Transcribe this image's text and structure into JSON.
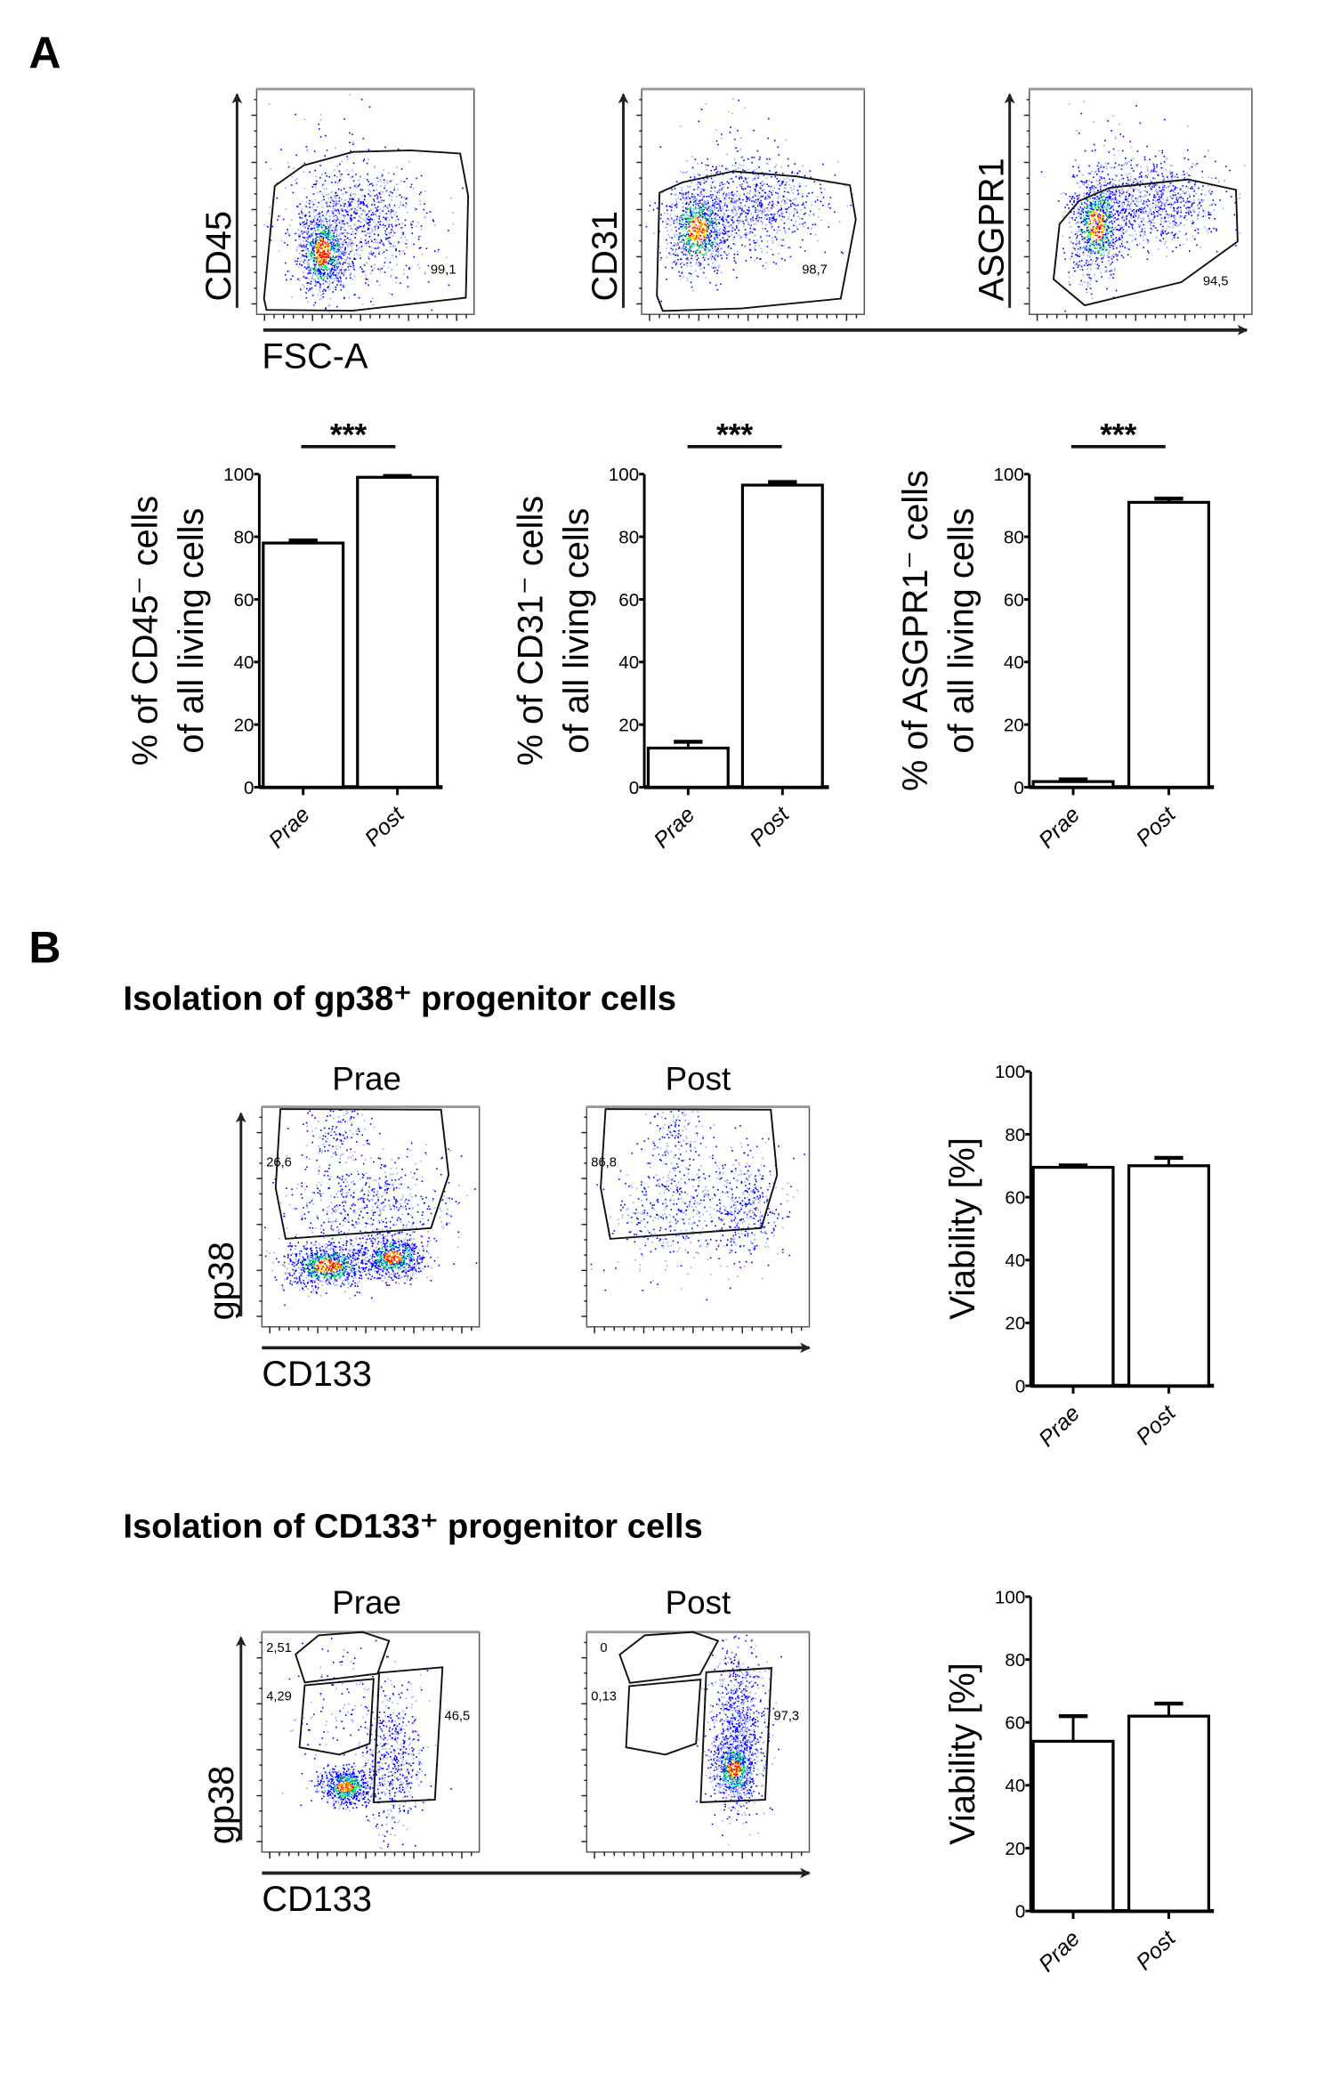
{
  "panel_labels": {
    "a": "A",
    "b": "B"
  },
  "panel_a": {
    "x_axis": "FSC-A",
    "flow_plots": [
      {
        "y_axis": "CD45",
        "gate_value": "99,1"
      },
      {
        "y_axis": "CD31",
        "gate_value": "98,7"
      },
      {
        "y_axis": "ASGPR1",
        "gate_value": "94,5"
      }
    ]
  },
  "panel_b": {
    "sections": [
      {
        "title": "Isolation of gp38⁺ progenitor cells",
        "groups": [
          "Prae",
          "Post"
        ],
        "y_axis": "gp38",
        "x_axis": "CD133",
        "gate_values": [
          [
            "26,6"
          ],
          [
            "86,8"
          ]
        ]
      },
      {
        "title": "Isolation of CD133⁺ progenitor cells",
        "groups": [
          "Prae",
          "Post"
        ],
        "y_axis": "gp38",
        "x_axis": "CD133",
        "gate_values": [
          [
            "2,51",
            "4,29",
            "46,5"
          ],
          [
            "0",
            "0,13",
            "97,3"
          ]
        ]
      }
    ]
  },
  "colors": {
    "bar_fill": "#ffffff",
    "stroke": "#000000",
    "density_low": "#0000ff",
    "density_high": "#ff0000"
  },
  "chart_data": [
    {
      "type": "bar",
      "categories": [
        "Prae",
        "Post"
      ],
      "values": [
        78,
        99
      ],
      "errors": [
        0.8,
        0.4
      ],
      "ylabel": [
        "% of CD45⁻ cells",
        "of all living cells"
      ],
      "ylim": [
        0,
        100
      ],
      "yticks": [
        0,
        20,
        40,
        60,
        80,
        100
      ],
      "significance": "***"
    },
    {
      "type": "bar",
      "categories": [
        "Prae",
        "Post"
      ],
      "values": [
        12.5,
        96.5
      ],
      "errors": [
        2,
        1
      ],
      "ylabel": [
        "% of CD31⁻ cells",
        "of all living cells"
      ],
      "ylim": [
        0,
        100
      ],
      "yticks": [
        0,
        20,
        40,
        60,
        80,
        100
      ],
      "significance": "***"
    },
    {
      "type": "bar",
      "categories": [
        "Prae",
        "Post"
      ],
      "values": [
        1.8,
        91
      ],
      "errors": [
        0.7,
        1.2
      ],
      "ylabel": [
        "% of ASGPR1⁻ cells",
        "of all living cells"
      ],
      "ylim": [
        0,
        100
      ],
      "yticks": [
        0,
        20,
        40,
        60,
        80,
        100
      ],
      "significance": "***"
    },
    {
      "type": "bar",
      "categories": [
        "Prae",
        "Post"
      ],
      "values": [
        69.5,
        70
      ],
      "errors": [
        0.6,
        2.5
      ],
      "ylabel": [
        "Viability [%]"
      ],
      "ylim": [
        0,
        100
      ],
      "yticks": [
        0,
        20,
        40,
        60,
        80,
        100
      ]
    },
    {
      "type": "bar",
      "categories": [
        "Prae",
        "Post"
      ],
      "values": [
        54,
        62
      ],
      "errors": [
        8,
        4
      ],
      "ylabel": [
        "Viability [%]"
      ],
      "ylim": [
        0,
        100
      ],
      "yticks": [
        0,
        20,
        40,
        60,
        80,
        100
      ]
    }
  ]
}
